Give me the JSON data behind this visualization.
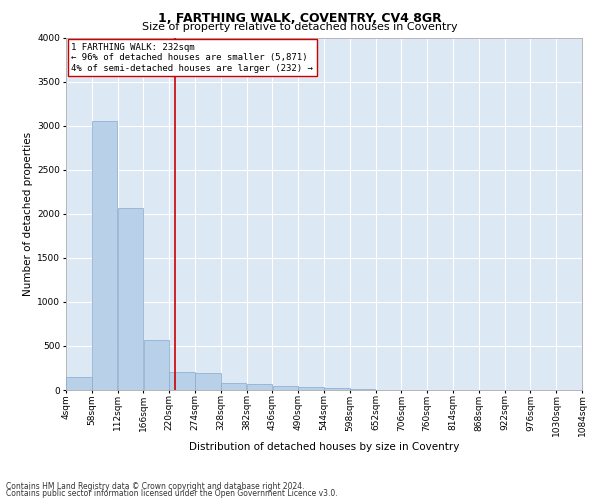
{
  "title": "1, FARTHING WALK, COVENTRY, CV4 8GR",
  "subtitle": "Size of property relative to detached houses in Coventry",
  "xlabel": "Distribution of detached houses by size in Coventry",
  "ylabel": "Number of detached properties",
  "footnote1": "Contains HM Land Registry data © Crown copyright and database right 2024.",
  "footnote2": "Contains public sector information licensed under the Open Government Licence v3.0.",
  "annotation_line1": "1 FARTHING WALK: 232sqm",
  "annotation_line2": "← 96% of detached houses are smaller (5,871)",
  "annotation_line3": "4% of semi-detached houses are larger (232) →",
  "bin_edges": [
    4,
    58,
    112,
    166,
    220,
    274,
    328,
    382,
    436,
    490,
    544,
    598,
    652,
    706,
    760,
    814,
    868,
    922,
    976,
    1030,
    1084
  ],
  "bin_counts": [
    150,
    3050,
    2060,
    570,
    200,
    195,
    78,
    68,
    42,
    38,
    28,
    10,
    5,
    3,
    2,
    1,
    1,
    1,
    1,
    1
  ],
  "bar_color": "#b8d0e8",
  "bar_edge_color": "#88aace",
  "vline_color": "#cc0000",
  "vline_x": 232,
  "ylim": [
    0,
    4000
  ],
  "yticks": [
    0,
    500,
    1000,
    1500,
    2000,
    2500,
    3000,
    3500,
    4000
  ],
  "plot_bg_color": "#dde8f5",
  "grid_color": "#ffffff",
  "fig_bg_color": "#ffffff",
  "annotation_box_facecolor": "#ffffff",
  "annotation_box_edgecolor": "#cc0000",
  "title_fontsize": 9,
  "subtitle_fontsize": 8,
  "axis_label_fontsize": 7.5,
  "tick_fontsize": 6.5,
  "annotation_fontsize": 6.5,
  "footnote_fontsize": 5.5
}
